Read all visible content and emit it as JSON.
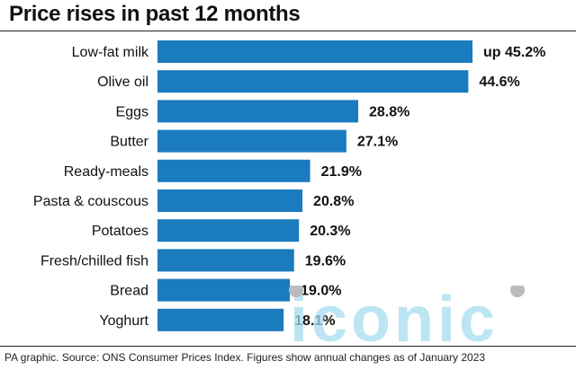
{
  "title": "Price rises in past 12 months",
  "footnote": "PA graphic. Source: ONS Consumer Prices Index. Figures show annual changes as of January 2023",
  "watermark_text": "iconic",
  "colors": {
    "bar": "#1a7bbf",
    "watermark": "#a6dcef"
  },
  "chart_data": {
    "type": "bar",
    "orientation": "horizontal",
    "categories": [
      "Low-fat milk",
      "Olive oil",
      "Eggs",
      "Butter",
      "Ready-meals",
      "Pasta & couscous",
      "Potatoes",
      "Fresh/chilled fish",
      "Bread",
      "Yoghurt"
    ],
    "values": [
      45.2,
      44.6,
      28.8,
      27.1,
      21.9,
      20.8,
      20.3,
      19.6,
      19.0,
      18.1
    ],
    "value_labels": [
      "up 45.2%",
      "44.6%",
      "28.8%",
      "27.1%",
      "21.9%",
      "20.8%",
      "20.3%",
      "19.6%",
      "19.0%",
      "18.1%"
    ],
    "xlim": [
      0,
      45.2
    ],
    "grid": false,
    "legend": "none"
  }
}
